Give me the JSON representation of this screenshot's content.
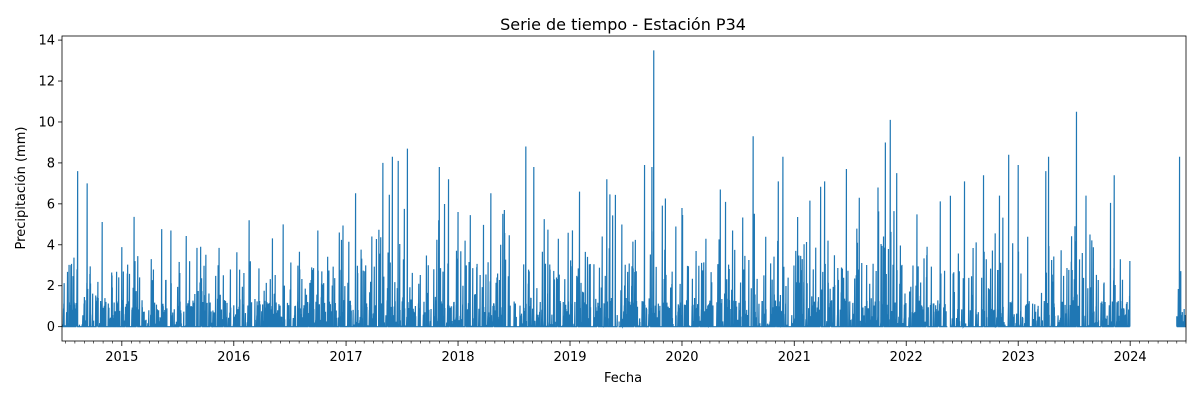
{
  "chart_data": {
    "type": "line",
    "title": "Serie de tiempo - Estación P34",
    "xlabel": "Fecha",
    "ylabel": "Precipitación (mm)",
    "xlim": [
      "2014-06-20",
      "2024-07-01"
    ],
    "ylim": [
      -0.7,
      14.2
    ],
    "y_ticks": [
      0,
      2,
      4,
      6,
      8,
      10,
      12,
      14
    ],
    "x_ticks": [
      "2015",
      "2016",
      "2017",
      "2018",
      "2019",
      "2020",
      "2021",
      "2022",
      "2023",
      "2024"
    ],
    "grid": false,
    "series": [
      {
        "color": "#1f77b4",
        "segments": [
          {
            "start": "2014-06-20",
            "end": "2019-06-05"
          },
          {
            "start": "2019-06-10",
            "end": "2022-05-15"
          },
          {
            "start": "2022-05-25",
            "end": "2023-12-31"
          },
          {
            "start": "2024-06-01",
            "end": "2024-07-01"
          }
        ],
        "peaks": [
          [
            "2014-08-10",
            7.6
          ],
          [
            "2014-09-10",
            7.0
          ],
          [
            "2015-06-10",
            4.7
          ],
          [
            "2016-02-20",
            5.2
          ],
          [
            "2016-06-10",
            5.0
          ],
          [
            "2016-10-01",
            4.7
          ],
          [
            "2016-12-10",
            4.6
          ],
          [
            "2017-05-01",
            8.0
          ],
          [
            "2017-06-01",
            8.3
          ],
          [
            "2017-06-20",
            8.1
          ],
          [
            "2017-07-20",
            8.7
          ],
          [
            "2017-11-01",
            7.8
          ],
          [
            "2017-12-01",
            7.2
          ],
          [
            "2018-01-01",
            5.6
          ],
          [
            "2018-06-01",
            5.7
          ],
          [
            "2018-08-10",
            8.8
          ],
          [
            "2018-09-05",
            7.8
          ],
          [
            "2019-02-01",
            6.6
          ],
          [
            "2019-05-01",
            7.2
          ],
          [
            "2019-09-01",
            7.9
          ],
          [
            "2019-09-25",
            7.8
          ],
          [
            "2019-10-01",
            13.5
          ],
          [
            "2020-01-01",
            5.8
          ],
          [
            "2020-05-05",
            6.7
          ],
          [
            "2020-08-20",
            9.3
          ],
          [
            "2020-11-10",
            7.1
          ],
          [
            "2020-11-25",
            8.3
          ],
          [
            "2021-04-10",
            7.1
          ],
          [
            "2021-06-20",
            7.7
          ],
          [
            "2021-08-01",
            6.3
          ],
          [
            "2021-10-01",
            6.8
          ],
          [
            "2021-10-25",
            9.0
          ],
          [
            "2021-11-10",
            10.1
          ],
          [
            "2021-12-01",
            7.5
          ],
          [
            "2022-07-10",
            7.1
          ],
          [
            "2022-09-10",
            7.4
          ],
          [
            "2022-11-01",
            6.4
          ],
          [
            "2022-12-01",
            8.4
          ],
          [
            "2023-01-01",
            7.9
          ],
          [
            "2023-04-01",
            7.6
          ],
          [
            "2023-04-10",
            8.3
          ],
          [
            "2023-07-10",
            10.5
          ],
          [
            "2023-08-10",
            6.4
          ],
          [
            "2023-11-10",
            7.4
          ],
          [
            "2024-06-10",
            8.3
          ]
        ]
      }
    ]
  }
}
